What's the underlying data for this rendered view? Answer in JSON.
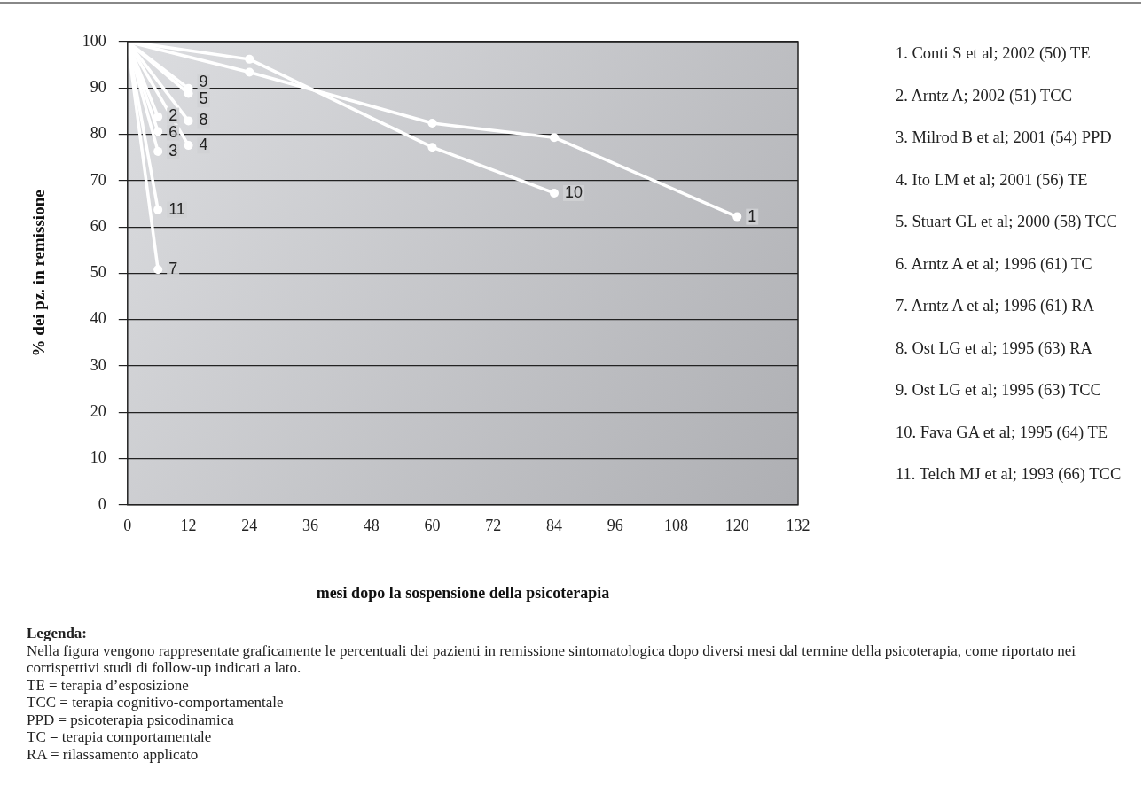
{
  "chart_data": {
    "type": "line",
    "xlabel": "mesi dopo la sospensione della psicoterapia",
    "ylabel": "% dei pz. in remissione",
    "xlim": [
      0,
      132
    ],
    "xticks": [
      0,
      12,
      24,
      36,
      48,
      60,
      72,
      84,
      96,
      108,
      120,
      132
    ],
    "ylim": [
      0,
      100
    ],
    "yticks": [
      0,
      10,
      20,
      30,
      40,
      50,
      60,
      70,
      80,
      90,
      100
    ],
    "grid": "y",
    "legend": false,
    "marker": "circle",
    "line_style": "solid",
    "series": [
      {
        "name": "1",
        "color": "#ffffff",
        "x": [
          0,
          24,
          60,
          84,
          120
        ],
        "values": [
          100,
          93.4,
          82.4,
          79.3,
          62.2
        ]
      },
      {
        "name": "2",
        "color": "#ffffff",
        "x": [
          0,
          6
        ],
        "values": [
          100,
          83.8
        ]
      },
      {
        "name": "3",
        "color": "#ffffff",
        "x": [
          0,
          6
        ],
        "values": [
          100,
          76.3
        ]
      },
      {
        "name": "4",
        "color": "#ffffff",
        "x": [
          0,
          12
        ],
        "values": [
          100,
          77.6
        ]
      },
      {
        "name": "5",
        "color": "#ffffff",
        "x": [
          0,
          12
        ],
        "values": [
          100,
          88.8
        ]
      },
      {
        "name": "6",
        "color": "#ffffff",
        "x": [
          0,
          6
        ],
        "values": [
          100,
          80.6
        ]
      },
      {
        "name": "7",
        "color": "#ffffff",
        "x": [
          0,
          6
        ],
        "values": [
          100,
          50.8
        ]
      },
      {
        "name": "8",
        "color": "#ffffff",
        "x": [
          0,
          12
        ],
        "values": [
          100,
          82.9
        ]
      },
      {
        "name": "9",
        "color": "#ffffff",
        "x": [
          0,
          12
        ],
        "values": [
          100,
          89.9
        ]
      },
      {
        "name": "10",
        "color": "#ffffff",
        "x": [
          0,
          24,
          60,
          84
        ],
        "values": [
          100,
          96.2,
          77.2,
          67.3
        ]
      },
      {
        "name": "11",
        "color": "#ffffff",
        "x": [
          0,
          6
        ],
        "values": [
          100,
          63.7
        ]
      }
    ],
    "annotations": [
      "1. Conti S et al; 2002 (50) TE",
      "2. Arntz A; 2002 (51) TCC",
      "3. Milrod B et al; 2001 (54) PPD",
      "4. Ito LM et al; 2001 (56) TE",
      "5. Stuart GL et al; 2000 (58) TCC",
      "6. Arntz A et al; 1996 (61) TC",
      "7. Arntz A et al; 1996 (61) RA",
      "8. Ost LG et al; 1995 (63) RA",
      "9. Ost LG et al; 1995 (63) TCC",
      "10. Fava GA et al; 1995 (64) TE",
      "11. Telch MJ et al; 1993 (66) TCC",
      "Legenda:",
      "Nella figura vengono rappresentate graficamente le percentuali dei pazienti in remissione sintomatologica dopo diversi mesi dal termine della psicoterapia, come riportato nei corrispettivi studi di follow-up indicati a lato.",
      "TE = terapia d’esposizione",
      "TCC = terapia cognitivo-comportamentale",
      "PPD = psicoterapia psicodinamica",
      "TC = terapia comportamentale",
      "RA = rilassamento applicato"
    ]
  }
}
